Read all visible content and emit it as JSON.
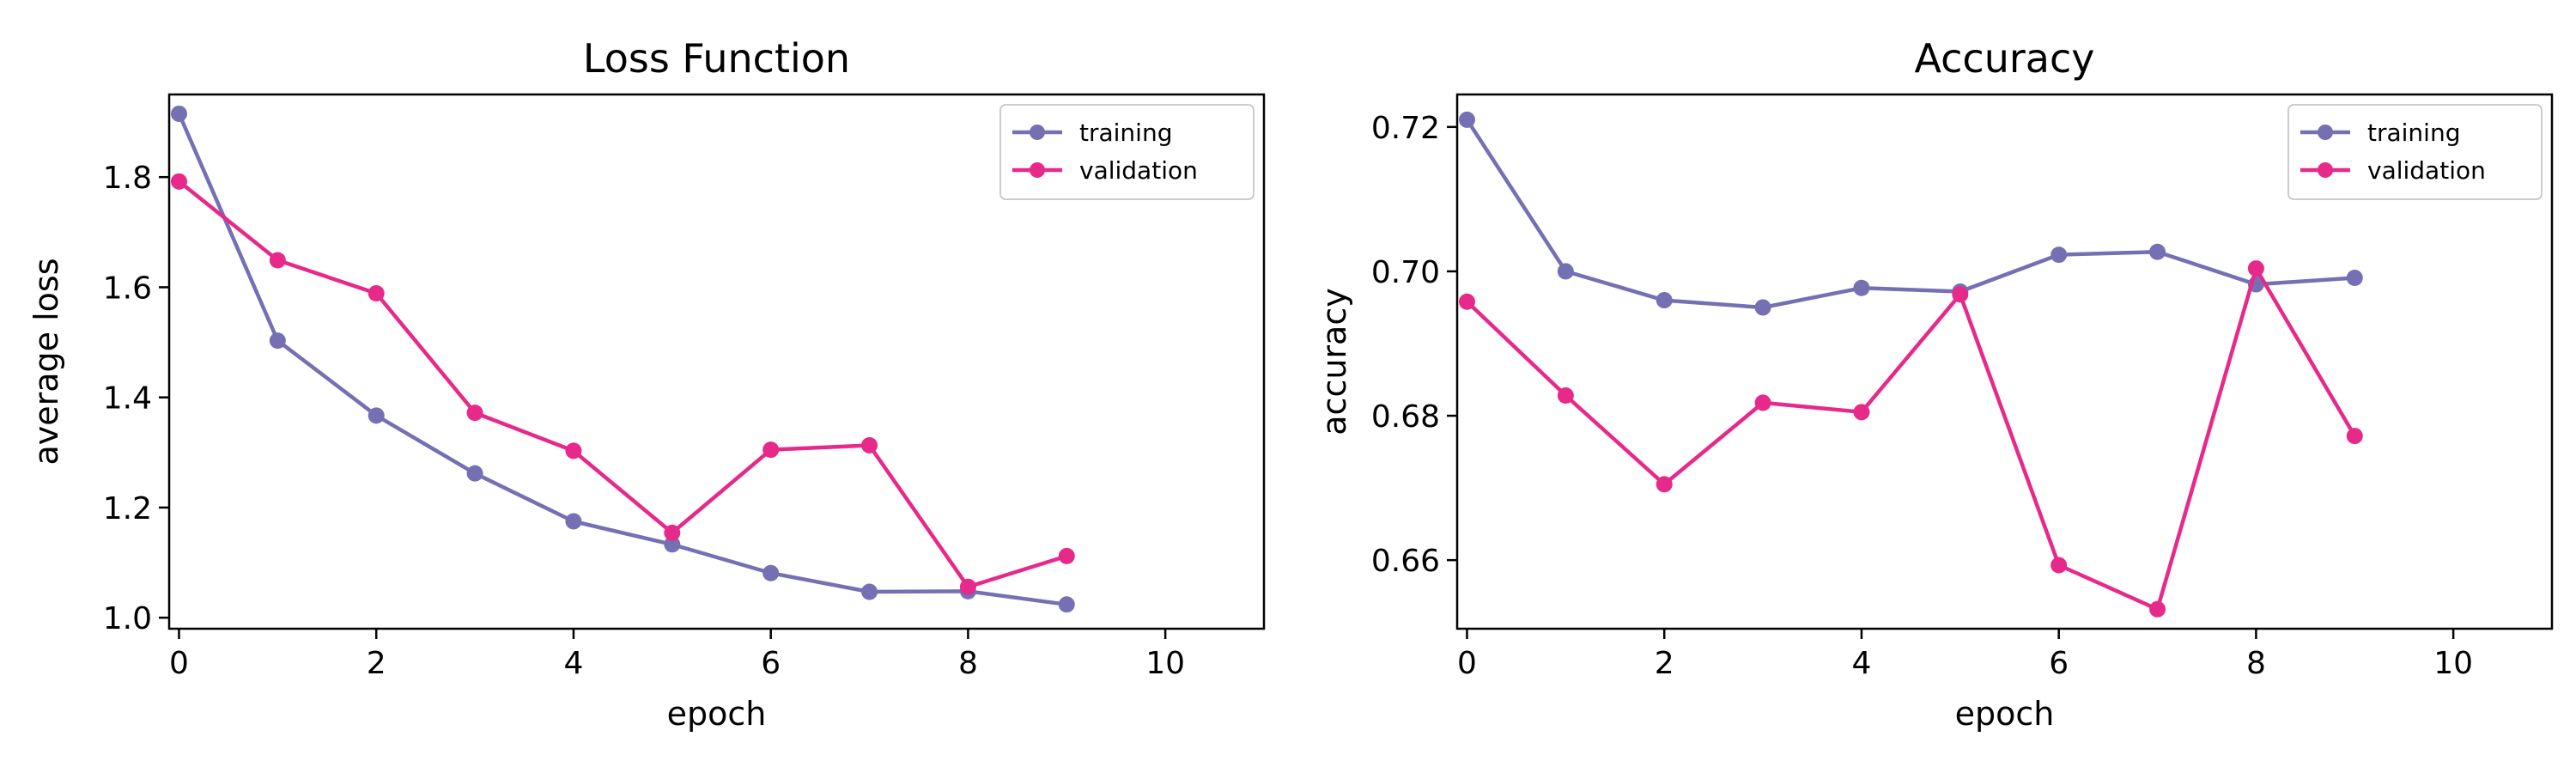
{
  "chart_data": [
    {
      "type": "line",
      "title": "Loss Function",
      "xlabel": "epoch",
      "ylabel": "average loss",
      "xlim": [
        -0.1,
        11.0
      ],
      "ylim": [
        0.98,
        1.95
      ],
      "xticks": [
        0,
        2,
        4,
        6,
        8,
        10
      ],
      "yticks": [
        1.0,
        1.2,
        1.4,
        1.6,
        1.8
      ],
      "ytick_labels": [
        "1.0",
        "1.2",
        "1.4",
        "1.6",
        "1.8"
      ],
      "x": [
        0,
        1,
        2,
        3,
        4,
        5,
        6,
        7,
        8,
        9
      ],
      "series": [
        {
          "name": "training",
          "color": "#7570b3",
          "values": [
            1.915,
            1.503,
            1.367,
            1.262,
            1.175,
            1.133,
            1.081,
            1.047,
            1.048,
            1.024
          ]
        },
        {
          "name": "validation",
          "color": "#e7298a",
          "values": [
            1.792,
            1.649,
            1.589,
            1.372,
            1.303,
            1.154,
            1.305,
            1.313,
            1.056,
            1.112
          ]
        }
      ],
      "legend": "top-right",
      "grid": false
    },
    {
      "type": "line",
      "title": "Accuracy",
      "xlabel": "epoch",
      "ylabel": "accuracy",
      "xlim": [
        -0.1,
        11.0
      ],
      "ylim": [
        0.6505,
        0.7245
      ],
      "xticks": [
        0,
        2,
        4,
        6,
        8,
        10
      ],
      "yticks": [
        0.66,
        0.68,
        0.7,
        0.72
      ],
      "ytick_labels": [
        "0.66",
        "0.68",
        "0.70",
        "0.72"
      ],
      "x": [
        0,
        1,
        2,
        3,
        4,
        5,
        6,
        7,
        8,
        9
      ],
      "series": [
        {
          "name": "training",
          "color": "#7570b3",
          "values": [
            0.721,
            0.7,
            0.696,
            0.695,
            0.6977,
            0.6972,
            0.7023,
            0.7027,
            0.6982,
            0.6991
          ]
        },
        {
          "name": "validation",
          "color": "#e7298a",
          "values": [
            0.6958,
            0.6828,
            0.6705,
            0.6818,
            0.6805,
            0.6968,
            0.6593,
            0.6532,
            0.7004,
            0.6772
          ]
        }
      ],
      "legend": "top-right",
      "grid": false
    }
  ]
}
